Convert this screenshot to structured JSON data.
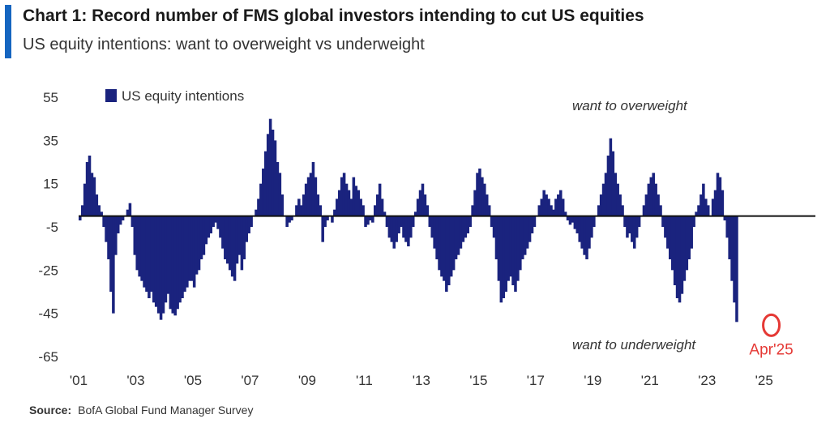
{
  "title": "Chart 1: Record number of FMS global investors intending to cut US equities",
  "subtitle": "US equity intentions: want to overweight vs underweight",
  "source_label": "Source:",
  "source_text": "BofA Global Fund Manager Survey",
  "colors": {
    "bar": "#1a237e",
    "accent": "#1565c0",
    "highlight": "#e53935"
  },
  "chart_data": {
    "type": "bar",
    "title": "Chart 1: Record number of FMS global investors intending to cut US equities",
    "subtitle": "US equity intentions: want to overweight vs underweight",
    "xlabel": "",
    "ylabel": "",
    "ylim": [
      -65,
      55
    ],
    "y_ticks": [
      55,
      35,
      15,
      -5,
      -25,
      -45,
      -65
    ],
    "x_range": [
      2001,
      2026
    ],
    "x_ticks": [
      {
        "label": "'01",
        "x": 2001
      },
      {
        "label": "'03",
        "x": 2003
      },
      {
        "label": "'05",
        "x": 2005
      },
      {
        "label": "'07",
        "x": 2007
      },
      {
        "label": "'09",
        "x": 2009
      },
      {
        "label": "'11",
        "x": 2011
      },
      {
        "label": "'13",
        "x": 2013
      },
      {
        "label": "'15",
        "x": 2015
      },
      {
        "label": "'17",
        "x": 2017
      },
      {
        "label": "'19",
        "x": 2019
      },
      {
        "label": "'21",
        "x": 2021
      },
      {
        "label": "'23",
        "x": 2023
      },
      {
        "label": "'25",
        "x": 2025
      }
    ],
    "legend": "US equity intentions",
    "legend_position": "top-left",
    "grid": false,
    "annotations": {
      "overweight": "want to overweight",
      "underweight": "want to underweight",
      "highlight_label": "Apr'25",
      "highlight_x": 2025.25,
      "highlight_y": -49
    },
    "series": [
      {
        "name": "US equity intentions",
        "start": 2001.0,
        "step": 0.0833,
        "values": [
          -2,
          5,
          15,
          25,
          28,
          20,
          18,
          10,
          5,
          2,
          -5,
          -12,
          -20,
          -35,
          -45,
          -18,
          -8,
          -4,
          -2,
          0,
          3,
          6,
          -5,
          -18,
          -25,
          -28,
          -30,
          -33,
          -35,
          -38,
          -35,
          -40,
          -42,
          -45,
          -48,
          -45,
          -40,
          -36,
          -43,
          -45,
          -46,
          -43,
          -40,
          -38,
          -35,
          -33,
          -30,
          -30,
          -33,
          -27,
          -25,
          -20,
          -18,
          -13,
          -10,
          -8,
          -5,
          -3,
          -6,
          -10,
          -15,
          -20,
          -22,
          -25,
          -28,
          -30,
          -22,
          -18,
          -25,
          -20,
          -12,
          -8,
          -5,
          0,
          3,
          8,
          15,
          22,
          30,
          38,
          45,
          40,
          35,
          25,
          20,
          10,
          0,
          -5,
          -3,
          -2,
          0,
          5,
          8,
          5,
          10,
          15,
          18,
          20,
          25,
          18,
          10,
          5,
          -12,
          -5,
          -2,
          0,
          -3,
          3,
          8,
          12,
          18,
          20,
          15,
          12,
          8,
          18,
          14,
          12,
          8,
          5,
          -5,
          -4,
          -2,
          -3,
          5,
          10,
          15,
          8,
          2,
          -5,
          -10,
          -12,
          -15,
          -12,
          -8,
          -5,
          -10,
          -12,
          -14,
          -10,
          -5,
          2,
          8,
          12,
          15,
          10,
          5,
          -5,
          -10,
          -15,
          -20,
          -25,
          -28,
          -30,
          -35,
          -32,
          -28,
          -25,
          -20,
          -18,
          -15,
          -12,
          -10,
          -8,
          -5,
          5,
          12,
          20,
          22,
          18,
          15,
          10,
          5,
          -5,
          -10,
          -20,
          -30,
          -40,
          -38,
          -35,
          -30,
          -28,
          -32,
          -35,
          -30,
          -25,
          -20,
          -18,
          -15,
          -12,
          -8,
          -5,
          0,
          5,
          8,
          12,
          10,
          8,
          5,
          3,
          8,
          10,
          12,
          8,
          2,
          -2,
          -4,
          -3,
          -6,
          -8,
          -12,
          -15,
          -18,
          -20,
          -15,
          -10,
          -5,
          0,
          5,
          10,
          15,
          20,
          28,
          36,
          30,
          20,
          15,
          10,
          5,
          -5,
          -10,
          -8,
          -12,
          -15,
          -10,
          -5,
          0,
          5,
          10,
          15,
          18,
          20,
          15,
          10,
          5,
          -5,
          -10,
          -15,
          -20,
          -25,
          -32,
          -38,
          -40,
          -36,
          -30,
          -25,
          -20,
          -15,
          -5,
          2,
          5,
          10,
          15,
          8,
          5,
          0,
          8,
          12,
          20,
          18,
          12,
          -2,
          -10,
          -20,
          -30,
          -40,
          -49
        ]
      }
    ]
  }
}
